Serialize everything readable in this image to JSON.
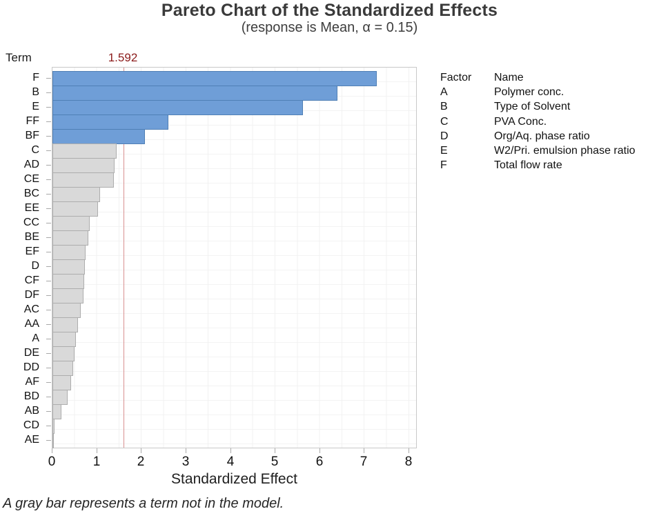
{
  "chart_data": {
    "type": "bar",
    "orientation": "horizontal",
    "title": "Pareto Chart of the Standardized Effects",
    "subtitle": "(response is Mean, α = 0.15)",
    "xlabel": "Standardized Effect",
    "ylabel": "Term",
    "xlim": [
      0,
      8.2
    ],
    "x_ticks": [
      0,
      1,
      2,
      3,
      4,
      5,
      6,
      7,
      8
    ],
    "grid": "faint vertical every 0.5 and horizontal per row",
    "reference_line": {
      "value": 1.592,
      "label": "1.592",
      "color": "#8b1a1a"
    },
    "categories": [
      "F",
      "B",
      "E",
      "FF",
      "BF",
      "C",
      "AD",
      "CE",
      "BC",
      "EE",
      "CC",
      "BE",
      "EF",
      "D",
      "CF",
      "DF",
      "AC",
      "AA",
      "A",
      "DE",
      "DD",
      "AF",
      "BD",
      "AB",
      "CD",
      "AE"
    ],
    "values": [
      7.28,
      6.39,
      5.62,
      2.6,
      2.07,
      1.44,
      1.39,
      1.37,
      1.07,
      1.02,
      0.84,
      0.8,
      0.75,
      0.72,
      0.71,
      0.69,
      0.64,
      0.58,
      0.53,
      0.49,
      0.46,
      0.42,
      0.34,
      0.2,
      0.04,
      0.02
    ],
    "in_model": [
      true,
      true,
      true,
      true,
      true,
      false,
      false,
      false,
      false,
      false,
      false,
      false,
      false,
      false,
      false,
      false,
      false,
      false,
      false,
      false,
      false,
      false,
      false,
      false,
      false,
      false
    ],
    "colors": {
      "in_model_fill": "#6f9ed7",
      "in_model_border": "#4f7fb5",
      "not_in_model_fill": "#d9d9d9",
      "not_in_model_border": "#adadad",
      "reference_line": "#d89090"
    },
    "footnote": "A gray bar represents a term not in the model."
  },
  "legend_table": {
    "header": {
      "factor": "Factor",
      "name": "Name"
    },
    "rows": [
      {
        "factor": "A",
        "name": "Polymer conc."
      },
      {
        "factor": "B",
        "name": "Type of Solvent"
      },
      {
        "factor": "C",
        "name": "PVA Conc."
      },
      {
        "factor": "D",
        "name": "Org/Aq. phase ratio"
      },
      {
        "factor": "E",
        "name": "W2/Pri. emulsion phase ratio"
      },
      {
        "factor": "F",
        "name": "Total flow rate"
      }
    ]
  }
}
